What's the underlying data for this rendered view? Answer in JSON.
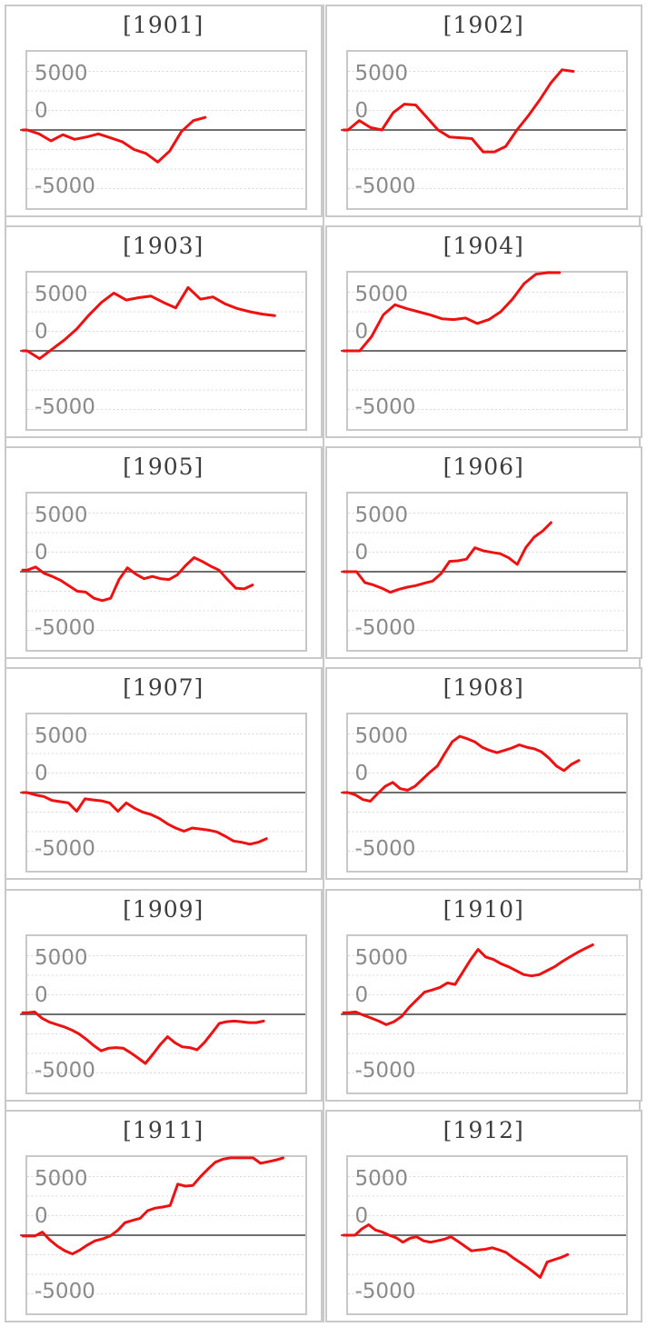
{
  "page": {
    "background": "#ffffff",
    "layout": "2x6-small-multiples"
  },
  "colors": {
    "series": "#ee1111",
    "grid_line": "#d8d8d8",
    "zero_line": "#6f6f6f",
    "plot_border": "#c8c8c8",
    "cell_border": "#c9c9c9",
    "tick_label": "#8a8a8a",
    "title_text": "#3d3d3d"
  },
  "chart_data": {
    "type": "line",
    "ylim": [
      -5000,
      5000
    ],
    "ytick_labels": [
      "5000",
      "0",
      "-5000"
    ],
    "grid_interval": 1250,
    "grid_style": "dotted",
    "zero_axis": true,
    "legend": "none",
    "charts": [
      {
        "title": "[1901]",
        "x_end": 0.64,
        "values": [
          0,
          -250,
          -700,
          -300,
          -600,
          -450,
          -250,
          -500,
          -750,
          -1250,
          -1500,
          -2050,
          -1350,
          -100,
          600,
          800
        ]
      },
      {
        "title": "[1902]",
        "x_end": 0.81,
        "values": [
          0,
          600,
          150,
          0,
          1100,
          1650,
          1600,
          800,
          0,
          -450,
          -500,
          -550,
          -1400,
          -1400,
          -1050,
          0,
          900,
          1900,
          3000,
          3850,
          3750
        ]
      },
      {
        "title": "[1903]",
        "x_end": 0.89,
        "values": [
          0,
          -500,
          100,
          700,
          1400,
          2300,
          3100,
          3700,
          3250,
          3400,
          3500,
          3100,
          2750,
          4050,
          3300,
          3450,
          3000,
          2700,
          2500,
          2350,
          2250
        ]
      },
      {
        "title": "[1904]",
        "x_end": 0.76,
        "values": [
          0,
          0,
          900,
          2300,
          2950,
          2700,
          2500,
          2300,
          2050,
          2000,
          2100,
          1750,
          2000,
          2500,
          3300,
          4300,
          4900,
          5000,
          5000
        ]
      },
      {
        "title": "[1905]",
        "x_end": 0.81,
        "values": [
          100,
          300,
          -100,
          -300,
          -550,
          -900,
          -1250,
          -1300,
          -1700,
          -1850,
          -1700,
          -500,
          250,
          -150,
          -450,
          -300,
          -450,
          -500,
          -200,
          400,
          900,
          650,
          350,
          100,
          -500,
          -1050,
          -1100,
          -850
        ]
      },
      {
        "title": "[1906]",
        "x_end": 0.73,
        "values": [
          0,
          0,
          -700,
          -850,
          -1050,
          -1320,
          -1130,
          -990,
          -890,
          -740,
          -600,
          -120,
          660,
          700,
          800,
          1530,
          1340,
          1240,
          1150,
          890,
          465,
          1530,
          2210,
          2600,
          3140
        ]
      },
      {
        "title": "[1907]",
        "x_end": 0.86,
        "values": [
          0,
          -150,
          -250,
          -500,
          -580,
          -660,
          -1200,
          -400,
          -470,
          -530,
          -660,
          -1200,
          -660,
          -1000,
          -1250,
          -1400,
          -1650,
          -2000,
          -2270,
          -2470,
          -2270,
          -2330,
          -2400,
          -2520,
          -2790,
          -3100,
          -3180,
          -3300,
          -3180,
          -2950
        ]
      },
      {
        "title": "[1908]",
        "x_end": 0.83,
        "values": [
          0,
          -150,
          -450,
          -550,
          -50,
          400,
          650,
          250,
          150,
          400,
          850,
          1300,
          1700,
          2500,
          3250,
          3600,
          3450,
          3250,
          2900,
          2700,
          2550,
          2700,
          2850,
          3050,
          2900,
          2800,
          2600,
          2200,
          1700,
          1400,
          1800,
          2050
        ]
      },
      {
        "title": "[1909]",
        "x_end": 0.85,
        "values": [
          100,
          150,
          -250,
          -500,
          -650,
          -800,
          -1000,
          -1250,
          -1600,
          -2000,
          -2330,
          -2170,
          -2130,
          -2170,
          -2460,
          -2790,
          -3140,
          -2560,
          -1940,
          -1430,
          -1820,
          -2080,
          -2130,
          -2270,
          -1790,
          -1200,
          -580,
          -470,
          -430,
          -470,
          -530,
          -530,
          -430
        ]
      },
      {
        "title": "[1910]",
        "x_end": 0.88,
        "values": [
          100,
          150,
          -50,
          -230,
          -430,
          -660,
          -470,
          -140,
          450,
          930,
          1420,
          1560,
          1720,
          2010,
          1910,
          2690,
          3470,
          4150,
          3670,
          3510,
          3240,
          3040,
          2790,
          2540,
          2460,
          2540,
          2790,
          3040,
          3370,
          3670,
          3960,
          4210,
          4450
        ]
      },
      {
        "title": "[1911]",
        "x_end": 0.92,
        "values": [
          -50,
          -50,
          200,
          -300,
          -700,
          -1000,
          -1200,
          -950,
          -630,
          -360,
          -240,
          -50,
          300,
          800,
          950,
          1080,
          1570,
          1730,
          1800,
          1900,
          3270,
          3140,
          3180,
          3730,
          4220,
          4670,
          4860,
          4950,
          4950,
          4950,
          4950,
          4600,
          4700,
          4800,
          4940
        ]
      },
      {
        "title": "[1912]",
        "x_end": 0.79,
        "values": [
          0,
          0,
          400,
          670,
          330,
          200,
          0,
          -160,
          -450,
          -200,
          -100,
          -360,
          -450,
          -360,
          -260,
          -100,
          -390,
          -700,
          -1000,
          -940,
          -900,
          -800,
          -940,
          -1100,
          -1430,
          -1720,
          -2020,
          -2350,
          -2700,
          -1720,
          -1570,
          -1430,
          -1240
        ]
      }
    ]
  }
}
